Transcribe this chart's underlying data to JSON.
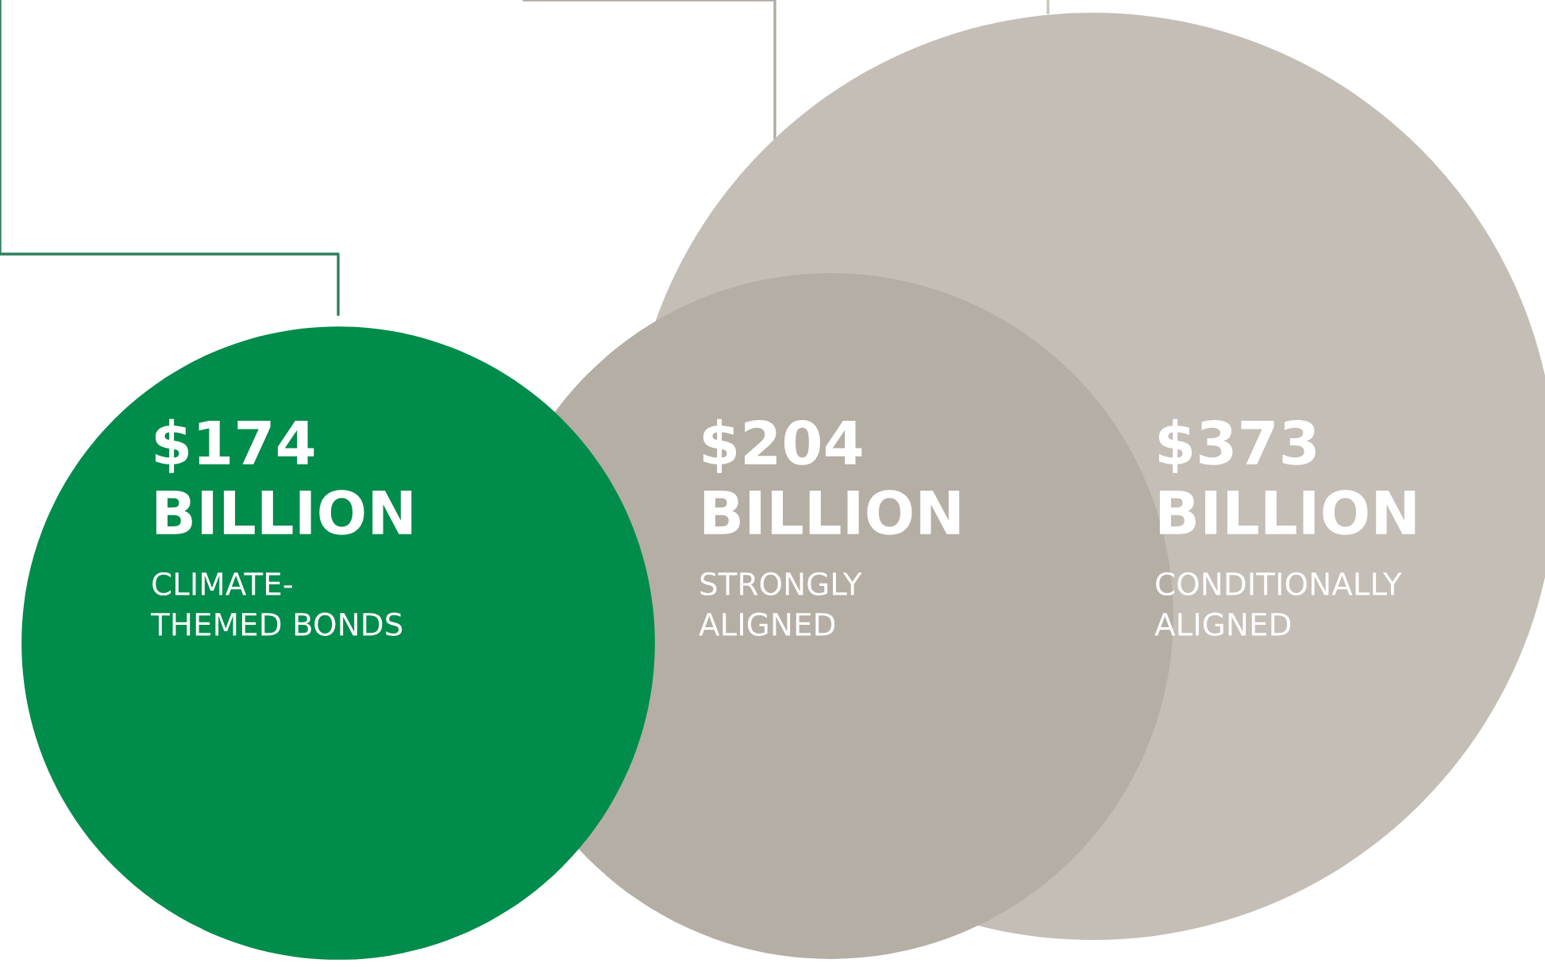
{
  "chart_data": {
    "type": "other",
    "categories": [
      "CLIMATE-\nTHEMED BONDS",
      "STRONGLY\nALIGNED",
      "CONDITIONALLY\nALIGNED"
    ],
    "values": [
      174,
      204,
      373
    ],
    "value_labels": [
      "$174\nBILLION",
      "$204\nBILLION",
      "$373\nBILLION"
    ],
    "colors": [
      "#008c4a",
      "#b5aea4",
      "#c4beb6"
    ]
  }
}
